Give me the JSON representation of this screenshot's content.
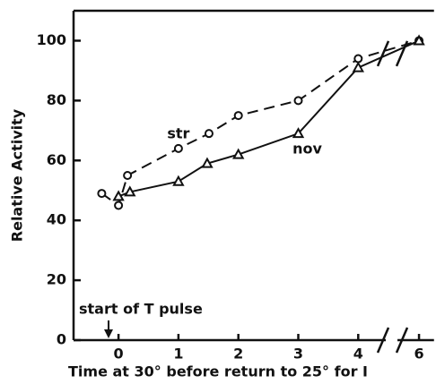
{
  "chart_data": {
    "type": "line",
    "x_label": "Time at 30° before return to 25° for I",
    "y_label": "Relative Activity",
    "xlim": [
      -0.75,
      6.25
    ],
    "xticks": [
      0,
      1,
      2,
      3,
      4,
      6
    ],
    "xbreak": [
      4.4,
      5.7
    ],
    "ylim": [
      0,
      110
    ],
    "yticks": [
      0,
      20,
      40,
      60,
      80,
      100
    ],
    "series": [
      {
        "name": "str",
        "color": "#111",
        "dash": true,
        "marker": "circle",
        "x": [
          -0.28,
          0.0,
          0.15,
          1.0,
          1.51,
          2.0,
          3.0,
          4.0,
          6.0
        ],
        "values": [
          49,
          45,
          55,
          64,
          69,
          75,
          80,
          94,
          100
        ]
      },
      {
        "name": "nov",
        "color": "#111",
        "dash": false,
        "marker": "triangle",
        "x": [
          0.0,
          0.19,
          1.0,
          1.48,
          2.0,
          3.0,
          4.0,
          6.0
        ],
        "values": [
          48,
          49.5,
          53,
          59,
          62,
          69,
          91,
          100
        ]
      }
    ],
    "annotations": [
      "start of T pulse"
    ]
  }
}
